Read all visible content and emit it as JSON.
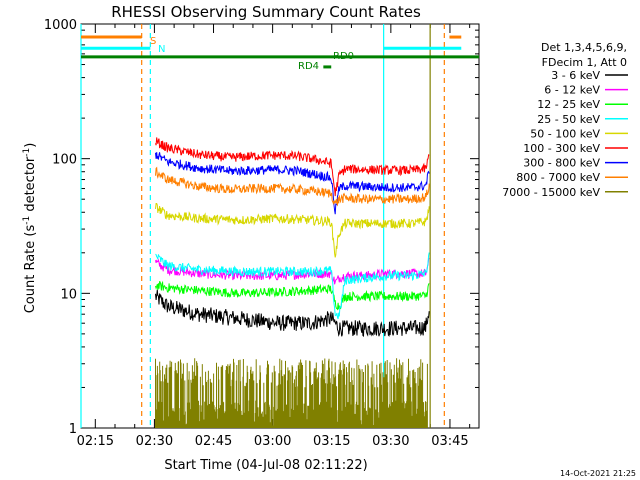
{
  "chart_data": {
    "type": "line",
    "title": "RHESSI Observing Summary Count Rates",
    "xlabel": "Start Time (04-Jul-08 02:11:22)",
    "ylabel_main": "Count Rate (s",
    "ylabel_sup1": "-1",
    "ylabel_mid": " detector",
    "ylabel_sup2": "-1",
    "ylabel_end": ")",
    "yscale": "log",
    "ylim": [
      1,
      1000
    ],
    "xlim_minutes": [
      0,
      101
    ],
    "x_ticks": [
      {
        "label": "02:15",
        "minute": 3.63
      },
      {
        "label": "02:30",
        "minute": 18.63
      },
      {
        "label": "02:45",
        "minute": 33.63
      },
      {
        "label": "03:00",
        "minute": 48.63
      },
      {
        "label": "03:15",
        "minute": 63.63
      },
      {
        "label": "03:30",
        "minute": 78.63
      },
      {
        "label": "03:45",
        "minute": 93.63
      }
    ],
    "y_ticks": [
      {
        "label": "1",
        "value": 1
      },
      {
        "label": "10",
        "value": 10
      },
      {
        "label": "100",
        "value": 100
      },
      {
        "label": "1000",
        "value": 1000
      }
    ],
    "legend_header": [
      "Det 1,3,4,5,6,9,",
      "FDecim 1, Att 0"
    ],
    "legend_placement": "right",
    "series": [
      {
        "name": "3 - 6 keV",
        "color": "#000000",
        "points": [
          [
            18.9,
            9.5
          ],
          [
            22,
            8
          ],
          [
            30,
            7
          ],
          [
            40,
            6.5
          ],
          [
            50,
            6
          ],
          [
            58,
            6
          ],
          [
            63.5,
            6.5
          ],
          [
            64.5,
            6
          ],
          [
            65.5,
            5.5
          ],
          [
            67,
            5.5
          ],
          [
            72,
            5.5
          ],
          [
            78,
            5.5
          ],
          [
            84,
            5.5
          ],
          [
            87.5,
            5.6
          ],
          [
            88.5,
            8
          ]
        ]
      },
      {
        "name": "6 - 12 keV",
        "color": "#ff00ff",
        "points": [
          [
            18.9,
            17
          ],
          [
            22,
            15
          ],
          [
            30,
            14
          ],
          [
            40,
            13.5
          ],
          [
            50,
            13.5
          ],
          [
            58,
            14
          ],
          [
            63.5,
            14
          ],
          [
            64.5,
            12
          ],
          [
            65.5,
            13
          ],
          [
            67,
            13.5
          ],
          [
            72,
            13.5
          ],
          [
            78,
            14
          ],
          [
            84,
            14
          ],
          [
            87.5,
            14
          ],
          [
            88.5,
            18
          ]
        ]
      },
      {
        "name": "12 - 25 keV",
        "color": "#00ff00",
        "points": [
          [
            18.9,
            11.5
          ],
          [
            22,
            11
          ],
          [
            30,
            10.5
          ],
          [
            40,
            10
          ],
          [
            50,
            10.2
          ],
          [
            58,
            10.5
          ],
          [
            63.5,
            10.8
          ],
          [
            64.5,
            8.5
          ],
          [
            65.5,
            8
          ],
          [
            67,
            9.5
          ],
          [
            72,
            9.5
          ],
          [
            78,
            9.5
          ],
          [
            84,
            9.5
          ],
          [
            87.5,
            9.6
          ],
          [
            88.5,
            12
          ]
        ]
      },
      {
        "name": "25 - 50 keV",
        "color": "#00ffff",
        "points": [
          [
            18.9,
            19
          ],
          [
            22,
            16
          ],
          [
            30,
            15
          ],
          [
            40,
            14.5
          ],
          [
            50,
            14.5
          ],
          [
            58,
            14.5
          ],
          [
            63.5,
            14.8
          ],
          [
            64.5,
            7
          ],
          [
            65.5,
            6.8
          ],
          [
            67,
            12.5
          ],
          [
            72,
            13
          ],
          [
            78,
            13.5
          ],
          [
            84,
            13.5
          ],
          [
            87.5,
            14
          ],
          [
            88.5,
            20
          ]
        ]
      },
      {
        "name": "50 - 100 keV",
        "color": "#d7d700",
        "points": [
          [
            18.9,
            44
          ],
          [
            22,
            38
          ],
          [
            30,
            36
          ],
          [
            40,
            35
          ],
          [
            50,
            36
          ],
          [
            58,
            35
          ],
          [
            63.5,
            34
          ],
          [
            64.5,
            19
          ],
          [
            65.5,
            28
          ],
          [
            67,
            33
          ],
          [
            72,
            33
          ],
          [
            78,
            33
          ],
          [
            84,
            33
          ],
          [
            87.5,
            34
          ],
          [
            88.5,
            44
          ]
        ]
      },
      {
        "name": "100 - 300 keV",
        "color": "#ff0000",
        "points": [
          [
            18.9,
            135
          ],
          [
            22,
            120
          ],
          [
            30,
            107
          ],
          [
            38,
            102
          ],
          [
            45,
            105
          ],
          [
            50,
            106
          ],
          [
            55,
            104
          ],
          [
            60,
            98
          ],
          [
            63.5,
            92
          ],
          [
            64.5,
            55
          ],
          [
            65.5,
            75
          ],
          [
            67,
            84
          ],
          [
            72,
            83
          ],
          [
            78,
            82
          ],
          [
            84,
            82
          ],
          [
            87.5,
            84
          ],
          [
            88.5,
            110
          ]
        ]
      },
      {
        "name": "300 - 800 keV",
        "color": "#0000ff",
        "points": [
          [
            18.9,
            108
          ],
          [
            22,
            95
          ],
          [
            30,
            85
          ],
          [
            38,
            81
          ],
          [
            45,
            82
          ],
          [
            50,
            83
          ],
          [
            55,
            81
          ],
          [
            60,
            76
          ],
          [
            63.5,
            72
          ],
          [
            64.5,
            40
          ],
          [
            65.5,
            60
          ],
          [
            67,
            63
          ],
          [
            72,
            62
          ],
          [
            78,
            61
          ],
          [
            84,
            61
          ],
          [
            87.5,
            63
          ],
          [
            88.5,
            85
          ]
        ]
      },
      {
        "name": "800 - 7000 keV",
        "color": "#ff7f00",
        "points": [
          [
            18.9,
            80
          ],
          [
            22,
            70
          ],
          [
            30,
            62
          ],
          [
            38,
            59
          ],
          [
            45,
            60
          ],
          [
            50,
            60
          ],
          [
            55,
            59
          ],
          [
            60,
            57
          ],
          [
            63.5,
            55
          ],
          [
            64.5,
            46
          ],
          [
            65.5,
            50
          ],
          [
            67,
            51
          ],
          [
            72,
            50
          ],
          [
            78,
            50
          ],
          [
            84,
            50
          ],
          [
            87.5,
            52
          ],
          [
            88.5,
            64
          ]
        ]
      },
      {
        "name": "7000 - 15000 keV",
        "color": "#808000",
        "points": [
          [
            18.9,
            2
          ],
          [
            30,
            2
          ],
          [
            45,
            2
          ],
          [
            60,
            2
          ],
          [
            75,
            2
          ],
          [
            88,
            2
          ]
        ]
      }
    ],
    "attenuator_bars": [
      {
        "label": "S",
        "color": "#ff7f00",
        "value": 800,
        "segments": [
          [
            0,
            15.4
          ],
          [
            93.5,
            96.5
          ]
        ]
      },
      {
        "label": "N",
        "color": "#00ffff",
        "value": 660,
        "segments": [
          [
            0,
            17.6
          ],
          [
            76.8,
            96.5
          ]
        ]
      },
      {
        "label": "RD0",
        "color": "#008000",
        "value": 570,
        "segments": [
          [
            0,
            101
          ]
        ]
      },
      {
        "label": "RD4",
        "color": "#008000",
        "value": 480,
        "segments": [
          [
            61.5,
            63.5
          ]
        ]
      }
    ],
    "vertical_lines": [
      {
        "minute": 0,
        "color": "#00ffff",
        "dashed": false
      },
      {
        "minute": 15.4,
        "color": "#ff7f00",
        "dashed": true
      },
      {
        "minute": 17.6,
        "color": "#00ffff",
        "dashed": true
      },
      {
        "minute": 76.8,
        "color": "#00ffff",
        "dashed": false
      },
      {
        "minute": 88.6,
        "color": "#808000",
        "dashed": false
      },
      {
        "minute": 92.2,
        "color": "#ff7f00",
        "dashed": true
      }
    ]
  },
  "footer": {
    "timestamp": "14-Oct-2021 21:25"
  }
}
